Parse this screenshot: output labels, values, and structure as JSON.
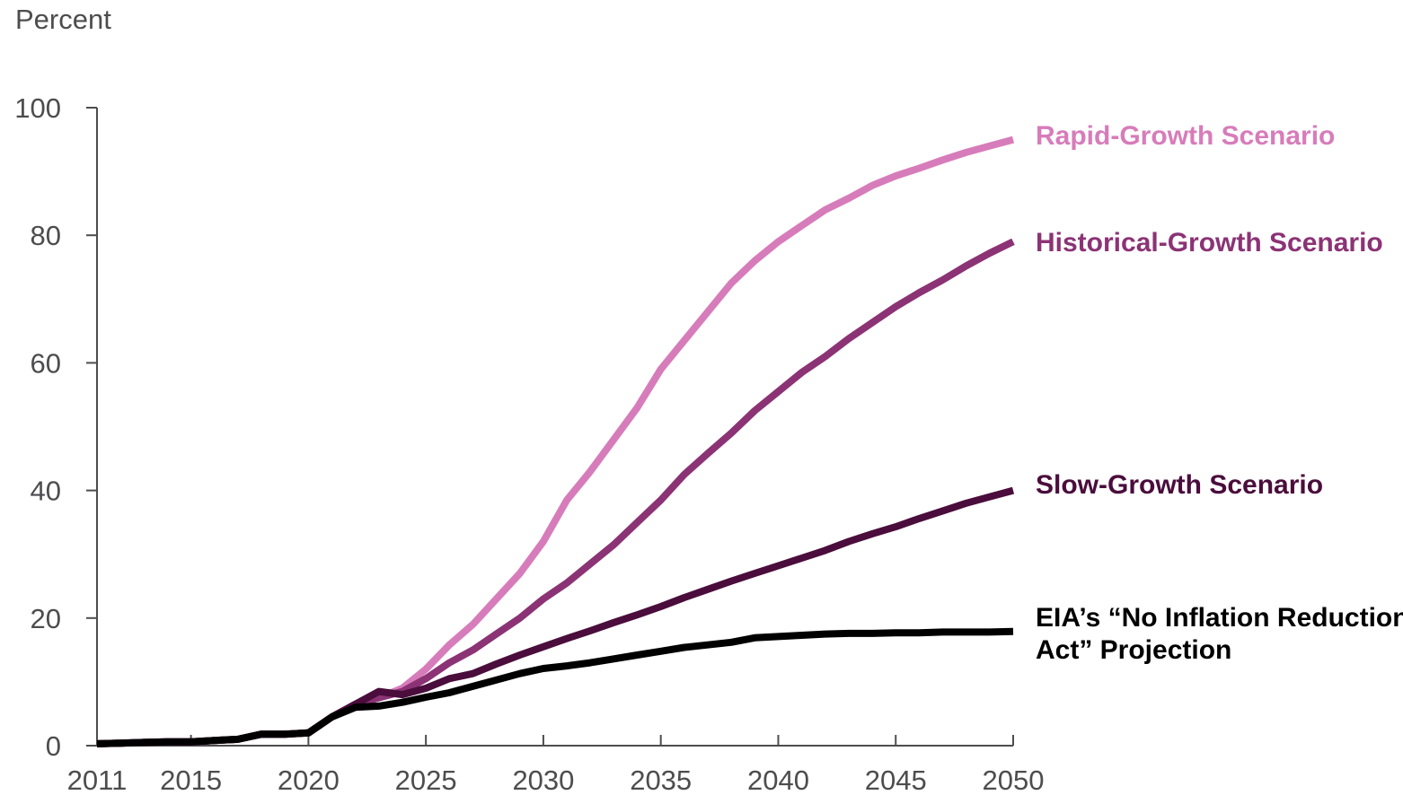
{
  "chart_data": {
    "type": "line",
    "title": "",
    "xlabel": "",
    "ylabel": "Percent",
    "xlim": [
      2011,
      2050
    ],
    "ylim": [
      0,
      100
    ],
    "x_ticks": [
      "2011",
      "2015",
      "2020",
      "2025",
      "2030",
      "2035",
      "2040",
      "2045",
      "2050"
    ],
    "y_ticks": [
      "0",
      "20",
      "40",
      "60",
      "80",
      "100"
    ],
    "grid": false,
    "legend": "direct labels at right end of lines",
    "x": [
      2011,
      2012,
      2013,
      2014,
      2015,
      2016,
      2017,
      2018,
      2019,
      2020,
      2021,
      2022,
      2023,
      2024,
      2025,
      2026,
      2027,
      2028,
      2029,
      2030,
      2031,
      2032,
      2033,
      2034,
      2035,
      2036,
      2037,
      2038,
      2039,
      2040,
      2041,
      2042,
      2043,
      2044,
      2045,
      2046,
      2047,
      2048,
      2049,
      2050
    ],
    "series": [
      {
        "name": "Rapid-Growth Scenario",
        "color": "#d77cba",
        "values": [
          0.3,
          0.4,
          0.5,
          0.6,
          0.6,
          0.8,
          1.0,
          1.8,
          1.8,
          2.0,
          4.5,
          6.5,
          7.5,
          9.0,
          12.0,
          15.8,
          19.0,
          23.0,
          27.0,
          32.0,
          38.5,
          43.0,
          48.0,
          53.0,
          59.0,
          63.5,
          68.0,
          72.5,
          76.0,
          79.0,
          81.5,
          84.0,
          85.8,
          87.8,
          89.3,
          90.5,
          91.8,
          93.0,
          94.0,
          95.0
        ]
      },
      {
        "name": "Historical-Growth Scenario",
        "color": "#8b3375",
        "values": [
          0.3,
          0.4,
          0.5,
          0.6,
          0.6,
          0.8,
          1.0,
          1.8,
          1.8,
          2.0,
          4.5,
          6.5,
          7.5,
          8.5,
          10.5,
          13.0,
          15.0,
          17.5,
          20.0,
          23.0,
          25.5,
          28.5,
          31.5,
          35.0,
          38.5,
          42.5,
          45.8,
          49.0,
          52.5,
          55.5,
          58.5,
          61.0,
          63.8,
          66.3,
          68.8,
          71.0,
          73.0,
          75.2,
          77.2,
          79.0
        ]
      },
      {
        "name": "Slow-Growth Scenario",
        "color": "#4a0d3c",
        "values": [
          0.3,
          0.4,
          0.5,
          0.6,
          0.6,
          0.8,
          1.0,
          1.8,
          1.8,
          2.0,
          4.5,
          6.5,
          8.5,
          8.0,
          9.0,
          10.5,
          11.3,
          12.8,
          14.2,
          15.5,
          16.8,
          18.0,
          19.3,
          20.5,
          21.8,
          23.2,
          24.5,
          25.8,
          27.0,
          28.2,
          29.4,
          30.6,
          32.0,
          33.2,
          34.3,
          35.6,
          36.8,
          38.0,
          39.0,
          40.0
        ]
      },
      {
        "name": "EIA’s “No Inflation Reduction Act” Projection",
        "color": "#000000",
        "values": [
          0.3,
          0.4,
          0.5,
          0.6,
          0.6,
          0.8,
          1.0,
          1.8,
          1.8,
          2.0,
          4.5,
          6.0,
          6.2,
          6.8,
          7.6,
          8.3,
          9.3,
          10.3,
          11.3,
          12.1,
          12.5,
          13.0,
          13.6,
          14.2,
          14.8,
          15.4,
          15.8,
          16.2,
          16.9,
          17.1,
          17.3,
          17.5,
          17.6,
          17.6,
          17.7,
          17.7,
          17.8,
          17.8,
          17.8,
          17.9
        ]
      }
    ],
    "series_labels": [
      {
        "lines": [
          "Rapid-Growth Scenario"
        ],
        "color": "#d77cba"
      },
      {
        "lines": [
          "Historical-Growth Scenario"
        ],
        "color": "#8b3375"
      },
      {
        "lines": [
          "Slow-Growth Scenario"
        ],
        "color": "#4a0d3c"
      },
      {
        "lines": [
          "EIA’s “No Inflation Reduction",
          "Act” Projection"
        ],
        "color": "#000000"
      }
    ]
  }
}
